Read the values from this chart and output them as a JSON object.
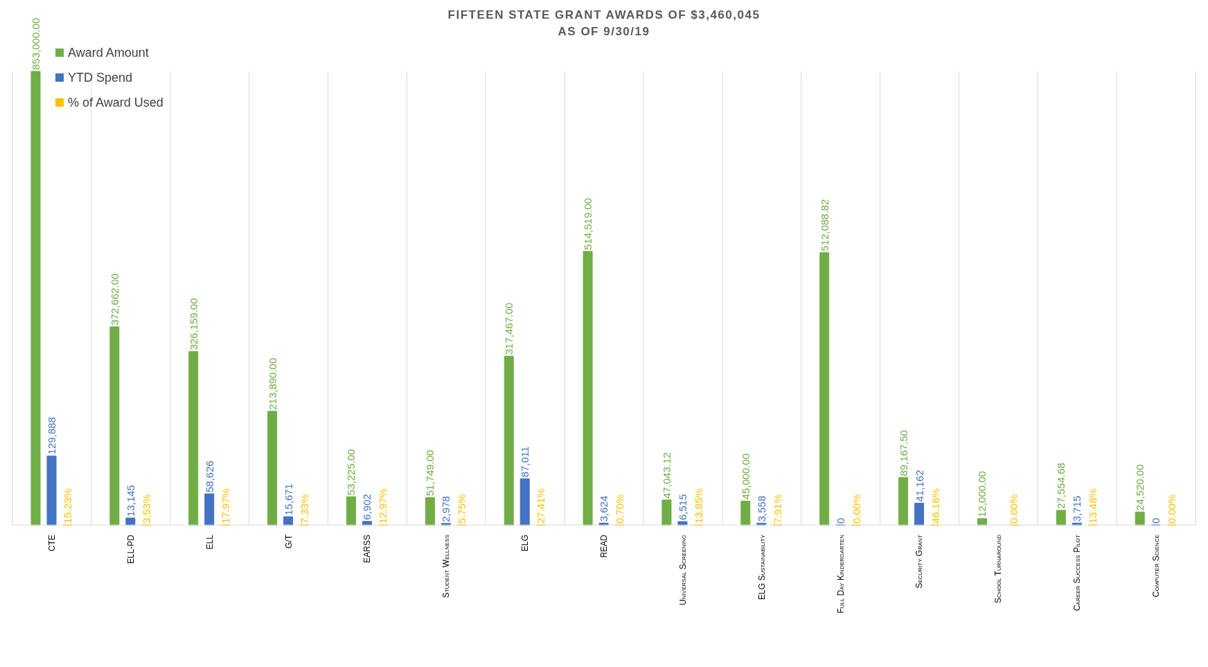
{
  "chart_data": {
    "type": "bar",
    "title": "FIFTEEN STATE GRANT AWARDS OF $3,460,045",
    "subtitle": "AS OF 9/30/19",
    "categories": [
      "CTE",
      "ELL-PD",
      "ELL",
      "G/T",
      "EARSS",
      "Student Wellness",
      "ELG",
      "READ",
      "Universal Screening",
      "ELG Sustainability",
      "Full Day Kindergarten",
      "Security Grant",
      "School Turnaround",
      "Career Success Pilot",
      "Computer Science"
    ],
    "series": [
      {
        "name": "Award Amount",
        "color": "#70ad47",
        "values": [
          853000.0,
          372662.0,
          326159.0,
          213890.0,
          53225.0,
          51749.0,
          317467.0,
          514519.0,
          47043.12,
          45000.0,
          512088.82,
          89167.5,
          12000.0,
          27554.68,
          24520.0
        ],
        "value_labels": [
          "853,000.00",
          "372,662.00",
          "326,159.00",
          "213,890.00",
          "53,225.00",
          "51,749.00",
          "317,467.00",
          "514,519.00",
          "47,043.12",
          "45,000.00",
          "512,088.82",
          "89,167.50",
          "12,000.00",
          "27,554.68",
          "24,520.00"
        ]
      },
      {
        "name": "YTD Spend",
        "color": "#4472c4",
        "values": [
          129888,
          13145,
          58626,
          15671,
          6902,
          2978,
          87011,
          3624,
          6515,
          3558,
          0,
          41162,
          null,
          3715,
          0
        ],
        "value_labels": [
          "129,888",
          "13,145",
          "58,626",
          "15,671",
          "6,902",
          "2,978",
          "87,011",
          "3,624",
          "6,515",
          "3,558",
          "0",
          "41,162",
          null,
          "3,715",
          "0"
        ]
      },
      {
        "name": "% of Award Used",
        "color": "#ffc000",
        "values": [
          15.23,
          3.53,
          17.97,
          7.33,
          12.97,
          5.75,
          27.41,
          0.7,
          13.85,
          7.91,
          0.0,
          46.16,
          0.0,
          13.48,
          0.0
        ],
        "value_labels": [
          "15.23%",
          "3.53%",
          "17.97%",
          "7.33%",
          "12.97%",
          "5.75%",
          "27.41%",
          "0.70%",
          "13.85%",
          "7.91%",
          "0.00%",
          "46.16%",
          "0.00%",
          "13.48%",
          "0.00%"
        ]
      }
    ],
    "grid": "x",
    "legend": "top left"
  }
}
